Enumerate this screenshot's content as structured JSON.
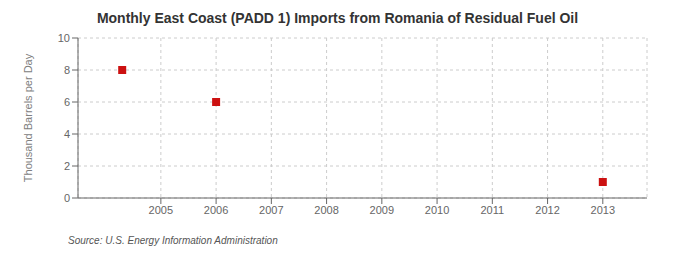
{
  "chart_data": {
    "type": "scatter",
    "title": "Monthly East Coast (PADD 1) Imports from Romania of Residual Fuel Oil",
    "ylabel": "Thousand Barrels per Day",
    "annotations": [
      "Source: U.S. Energy Information Administration"
    ],
    "x": [
      2004.3,
      2006.0,
      2013.0
    ],
    "values": [
      8,
      6,
      1
    ],
    "color": "#cc1111",
    "marker": "square",
    "xlim": [
      2003.5,
      2013.8
    ],
    "ylim": [
      0,
      10
    ],
    "xticks": [
      2005,
      2006,
      2007,
      2008,
      2009,
      2010,
      2011,
      2012,
      2013
    ],
    "yticks": [
      0,
      2,
      4,
      6,
      8,
      10
    ],
    "grid": true
  }
}
